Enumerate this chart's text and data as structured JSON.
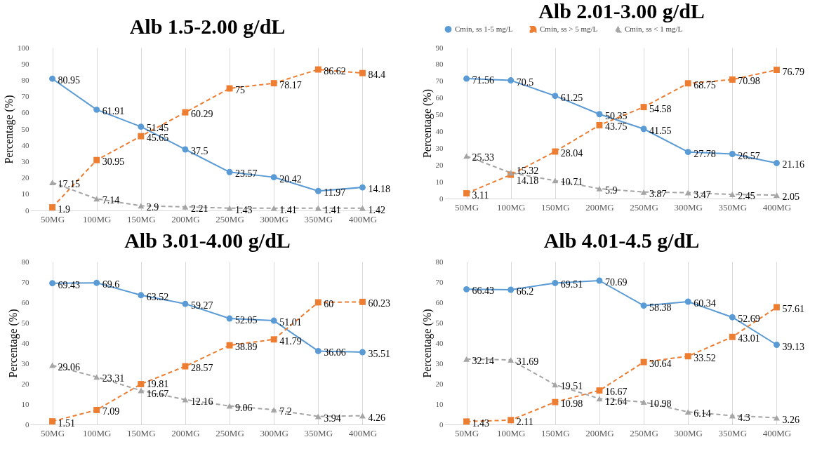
{
  "chart_data": [
    {
      "type": "line",
      "title": "Alb 1.5-2.00 g/dL",
      "ylabel": "Percentage (%)",
      "categories": [
        "50MG",
        "100MG",
        "150MG",
        "200MG",
        "250MG",
        "300MG",
        "350MG",
        "400MG"
      ],
      "ylim": [
        0,
        100
      ],
      "yticks": [
        0,
        10,
        20,
        30,
        40,
        50,
        60,
        70,
        80,
        90,
        100
      ],
      "grid": "x",
      "legend": false,
      "data_labels": true,
      "series": [
        {
          "color": "#5b9bd5",
          "marker": "circle",
          "line_style": "solid",
          "values": [
            80.95,
            61.91,
            51.45,
            37.5,
            23.57,
            20.42,
            11.97,
            14.18
          ]
        },
        {
          "color": "#ed7d31",
          "marker": "square",
          "line_style": "dashed",
          "values": [
            1.9,
            30.95,
            45.65,
            60.29,
            75,
            78.17,
            86.62,
            84.4
          ]
        },
        {
          "color": "#a5a5a5",
          "marker": "triangle",
          "line_style": "dashed",
          "values": [
            17.15,
            7.14,
            2.9,
            2.21,
            1.43,
            1.41,
            1.41,
            1.42
          ]
        }
      ]
    },
    {
      "type": "line",
      "title": "Alb 2.01-3.00 g/dL",
      "ylabel": "Percentage (%)",
      "categories": [
        "50MG",
        "100MG",
        "150MG",
        "200MG",
        "250MG",
        "300MG",
        "350MG",
        "400MG"
      ],
      "ylim": [
        0,
        90
      ],
      "yticks": [
        0,
        10,
        20,
        30,
        40,
        50,
        60,
        70,
        80,
        90
      ],
      "grid": "x",
      "legend": "top",
      "data_labels": true,
      "series": [
        {
          "name": "Cmin, ss 1-5 mg/L",
          "color": "#5b9bd5",
          "marker": "circle",
          "line_style": "solid",
          "values": [
            71.56,
            70.5,
            61.25,
            50.35,
            41.55,
            27.78,
            26.57,
            21.16
          ]
        },
        {
          "name": "Cmin, ss > 5 mg/L",
          "color": "#ed7d31",
          "marker": "square",
          "line_style": "dashed",
          "values": [
            3.11,
            14.18,
            28.04,
            43.75,
            54.58,
            68.75,
            70.98,
            76.79
          ]
        },
        {
          "name": "Cmin, ss < 1 mg/L",
          "color": "#a5a5a5",
          "marker": "triangle",
          "line_style": "dashed",
          "values": [
            25.33,
            15.32,
            10.71,
            5.9,
            3.87,
            3.47,
            2.45,
            2.05
          ]
        }
      ]
    },
    {
      "type": "line",
      "title": "Alb 3.01-4.00 g/dL",
      "ylabel": "Percentage (%)",
      "categories": [
        "50MG",
        "100MG",
        "150MG",
        "200MG",
        "250MG",
        "300MG",
        "350MG",
        "400MG"
      ],
      "ylim": [
        0,
        80
      ],
      "yticks": [
        0,
        10,
        20,
        30,
        40,
        50,
        60,
        70,
        80
      ],
      "grid": "x",
      "legend": false,
      "data_labels": true,
      "series": [
        {
          "color": "#5b9bd5",
          "marker": "circle",
          "line_style": "solid",
          "values": [
            69.43,
            69.6,
            63.52,
            59.27,
            52.05,
            51.01,
            36.06,
            35.51
          ]
        },
        {
          "color": "#ed7d31",
          "marker": "square",
          "line_style": "dashed",
          "values": [
            1.51,
            7.09,
            19.81,
            28.57,
            38.89,
            41.79,
            60,
            60.23
          ]
        },
        {
          "color": "#a5a5a5",
          "marker": "triangle",
          "line_style": "dashed",
          "values": [
            29.06,
            23.31,
            16.67,
            12.16,
            9.06,
            7.2,
            3.94,
            4.26
          ]
        }
      ]
    },
    {
      "type": "line",
      "title": "Alb 4.01-4.5 g/dL",
      "ylabel": "Percentage (%)",
      "categories": [
        "50MG",
        "100MG",
        "150MG",
        "200MG",
        "250MG",
        "300MG",
        "350MG",
        "400MG"
      ],
      "ylim": [
        0,
        80
      ],
      "yticks": [
        0,
        10,
        20,
        30,
        40,
        50,
        60,
        70,
        80
      ],
      "grid": "x",
      "legend": false,
      "data_labels": true,
      "series": [
        {
          "color": "#5b9bd5",
          "marker": "circle",
          "line_style": "solid",
          "values": [
            66.43,
            66.2,
            69.51,
            70.69,
            58.38,
            60.34,
            52.69,
            39.13
          ]
        },
        {
          "color": "#ed7d31",
          "marker": "square",
          "line_style": "dashed",
          "values": [
            1.43,
            2.11,
            10.98,
            16.67,
            30.64,
            33.52,
            43.01,
            57.61
          ]
        },
        {
          "color": "#a5a5a5",
          "marker": "triangle",
          "line_style": "dashed",
          "values": [
            32.14,
            31.69,
            19.51,
            12.64,
            10.98,
            6.14,
            4.3,
            3.26
          ]
        }
      ]
    }
  ]
}
